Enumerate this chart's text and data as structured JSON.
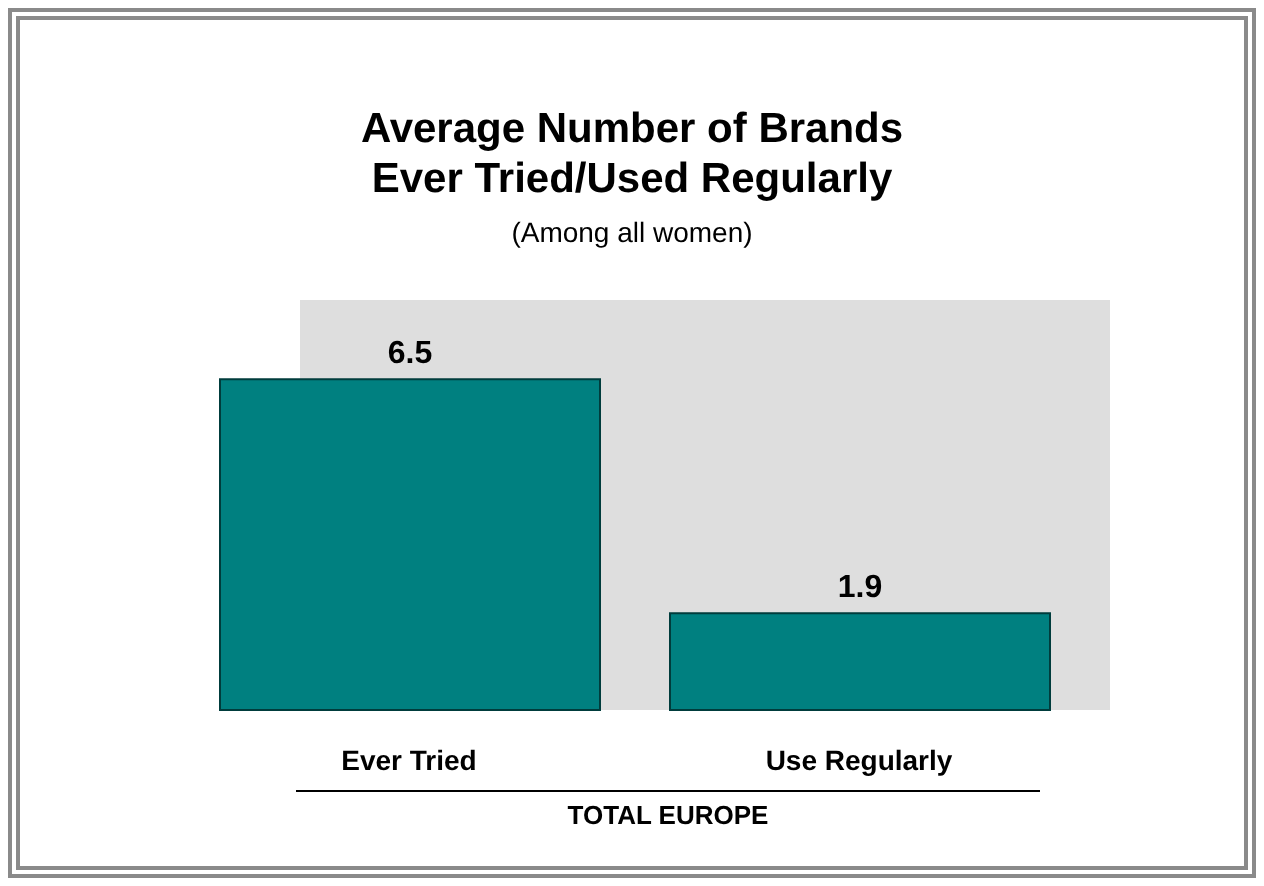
{
  "chart_data": {
    "type": "bar",
    "title": "Average Number of Brands\nEver Tried/Used Regularly",
    "subtitle": "(Among all women)",
    "xlabel": "TOTAL EUROPE",
    "categories": [
      "Ever Tried",
      "Use Regularly"
    ],
    "values": [
      6.5,
      1.9
    ],
    "color": "#008080",
    "data_labels": true,
    "grid": false,
    "legend": false
  }
}
